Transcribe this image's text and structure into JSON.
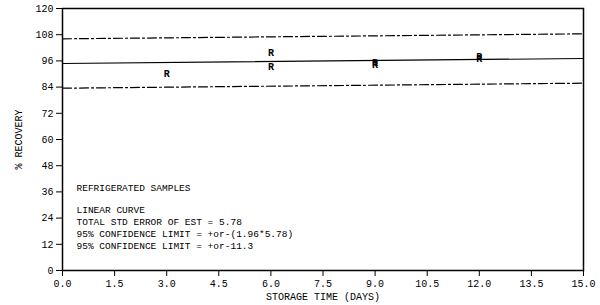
{
  "chart_data": {
    "type": "scatter",
    "x_label": "STORAGE TIME (DAYS)",
    "y_label": "% RECOVERY",
    "xlim": [
      0,
      15
    ],
    "ylim": [
      0,
      120
    ],
    "xticks": [
      {
        "value": 0,
        "label": "0.0"
      },
      1.5,
      {
        "value": 3,
        "label": "3.0"
      },
      4.5,
      {
        "value": 6,
        "label": "6.0"
      },
      7.5,
      {
        "value": 9,
        "label": "9.0"
      },
      10.5,
      {
        "value": 12,
        "label": "12.0"
      },
      13.5,
      {
        "value": 15,
        "label": "15.0"
      }
    ],
    "yticks": [
      0,
      12,
      24,
      36,
      48,
      60,
      72,
      84,
      96,
      108,
      120
    ],
    "grid": false,
    "color": "#000000",
    "annotations": [
      "REFRIGERATED SAMPLES",
      "LINEAR CURVE",
      "TOTAL STD ERROR OF EST = 5.78",
      "95% CONFIDENCE LIMIT = +or-(1.96*5.78)",
      "95% CONFIDENCE LIMIT = +or-11.3"
    ],
    "series": [
      {
        "type": "scatter",
        "marker": "R",
        "color": "#000000",
        "x": [
          3,
          6,
          6,
          9,
          9,
          12,
          12
        ],
        "values": [
          90,
          99.5,
          93.5,
          95,
          94,
          98,
          97
        ]
      },
      {
        "type": "line",
        "line_style": "solid",
        "color": "#000000",
        "x": [
          0,
          15
        ],
        "values": [
          94.8,
          97.1
        ]
      },
      {
        "type": "line",
        "line_style": "dashdot",
        "color": "#000000",
        "x": [
          0,
          15
        ],
        "values": [
          106.1,
          108.4
        ]
      },
      {
        "type": "line",
        "line_style": "dashdot",
        "color": "#000000",
        "x": [
          0,
          15
        ],
        "values": [
          83.5,
          85.8
        ]
      }
    ]
  }
}
